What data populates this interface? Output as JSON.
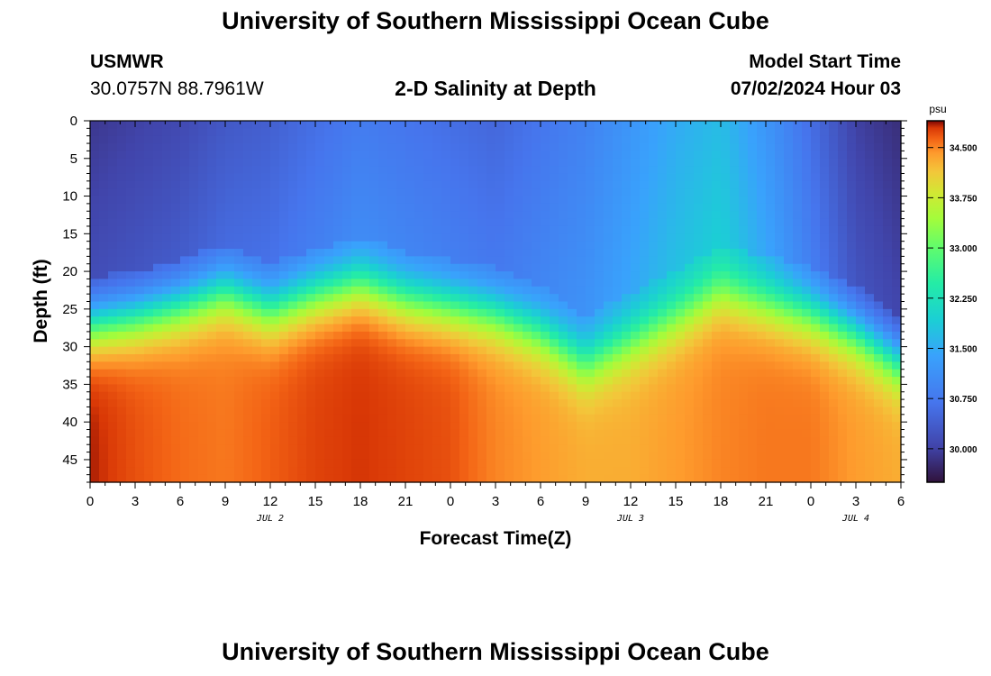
{
  "header": {
    "title": "University of Southern Mississippi Ocean Cube",
    "station_id": "USMWR",
    "coordinates": "30.0757N  88.7961W",
    "plot_title": "2-D Salinity at Depth",
    "start_label": "Model Start Time",
    "start_value": "07/02/2024 Hour 03"
  },
  "footer": {
    "title": "University of Southern Mississippi Ocean Cube"
  },
  "chart_data": {
    "type": "heatmap",
    "title": "2-D Salinity at Depth",
    "xlabel": "Forecast Time(Z)",
    "ylabel": "Depth (ft)",
    "x_tick_labels": [
      "0",
      "3",
      "6",
      "9",
      "12",
      "15",
      "18",
      "21",
      "0",
      "3",
      "6",
      "9",
      "12",
      "15",
      "18",
      "21",
      "0",
      "3",
      "6"
    ],
    "x_date_labels": [
      {
        "label": "JUL 2",
        "hour": 12
      },
      {
        "label": "JUL 3",
        "hour": 36
      },
      {
        "label": "JUL 4",
        "hour": 51
      }
    ],
    "x_range_hours": [
      0,
      54
    ],
    "y_ticks": [
      0,
      5,
      10,
      15,
      20,
      25,
      30,
      35,
      40,
      45
    ],
    "y_range_ft": [
      0,
      48
    ],
    "colorbar": {
      "unit": "psu",
      "ticks": [
        "30.000",
        "30.750",
        "31.500",
        "32.250",
        "33.000",
        "33.750",
        "34.500"
      ],
      "range": [
        29.5,
        34.9
      ]
    },
    "halocline_depth_ft": [
      [
        0,
        25
      ],
      [
        3,
        24
      ],
      [
        6,
        22.5
      ],
      [
        9,
        20.5
      ],
      [
        12,
        23
      ],
      [
        15,
        21
      ],
      [
        18,
        19.5
      ],
      [
        21,
        21.5
      ],
      [
        24,
        22.5
      ],
      [
        27,
        23.5
      ],
      [
        30,
        26
      ],
      [
        33,
        30
      ],
      [
        36,
        27
      ],
      [
        39,
        24
      ],
      [
        42,
        20.5
      ],
      [
        45,
        22
      ],
      [
        48,
        23.5
      ],
      [
        51,
        26
      ],
      [
        54,
        30
      ]
    ],
    "surface_salinity_psu": [
      [
        0,
        29.9
      ],
      [
        3,
        30.0
      ],
      [
        6,
        30.1
      ],
      [
        9,
        30.3
      ],
      [
        12,
        30.4
      ],
      [
        15,
        30.6
      ],
      [
        18,
        30.8
      ],
      [
        21,
        30.7
      ],
      [
        24,
        30.6
      ],
      [
        27,
        30.5
      ],
      [
        30,
        30.7
      ],
      [
        33,
        30.9
      ],
      [
        36,
        31.2
      ],
      [
        39,
        31.5
      ],
      [
        42,
        31.7
      ],
      [
        45,
        31.2
      ],
      [
        48,
        30.6
      ],
      [
        51,
        30.0
      ],
      [
        54,
        29.8
      ]
    ],
    "bottom_salinity_psu": [
      [
        0,
        34.85
      ],
      [
        3,
        34.7
      ],
      [
        6,
        34.6
      ],
      [
        9,
        34.55
      ],
      [
        12,
        34.65
      ],
      [
        15,
        34.75
      ],
      [
        18,
        34.8
      ],
      [
        21,
        34.75
      ],
      [
        24,
        34.7
      ],
      [
        27,
        34.5
      ],
      [
        30,
        34.4
      ],
      [
        33,
        34.3
      ],
      [
        36,
        34.3
      ],
      [
        39,
        34.4
      ],
      [
        42,
        34.5
      ],
      [
        45,
        34.55
      ],
      [
        48,
        34.55
      ],
      [
        51,
        34.4
      ],
      [
        54,
        34.3
      ]
    ]
  }
}
